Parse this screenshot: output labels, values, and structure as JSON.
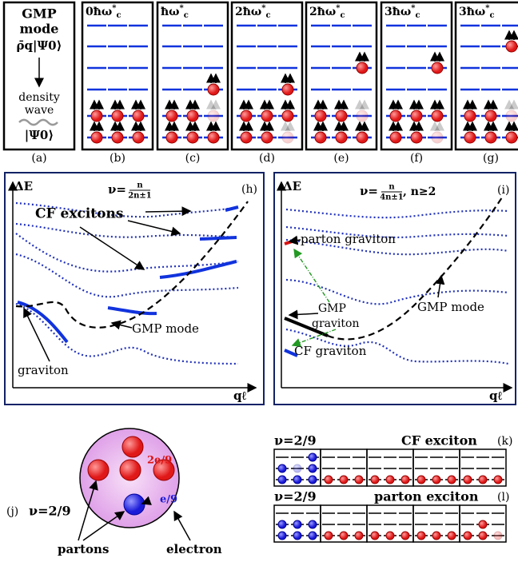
{
  "unit": {
    "base": "ħω",
    "sup": "*",
    "sub": "c"
  },
  "panel_a": {
    "lines": [
      "GMP",
      "mode",
      "ρ̄q|Ψ0⟩",
      "density",
      "wave",
      "|Ψ0⟩"
    ],
    "label": "(a)"
  },
  "level_panels": [
    {
      "multiple": "0",
      "label": "(b)"
    },
    {
      "multiple": "",
      "label": "(c)"
    },
    {
      "multiple": "2",
      "label": "(d)"
    },
    {
      "multiple": "2",
      "label": "(e)"
    },
    {
      "multiple": "3",
      "label": "(f)"
    },
    {
      "multiple": "3",
      "label": "(g)"
    }
  ],
  "panel_h": {
    "axis_y": "ΔE",
    "axis_x": "qℓ",
    "nu": "ν=",
    "frac_num": "n",
    "frac_den": "2n±1",
    "label": "(h)",
    "annotations": [
      "CF excitons",
      "GMP mode",
      "graviton"
    ]
  },
  "panel_i": {
    "axis_y": "ΔE",
    "axis_x": "qℓ",
    "nu": "ν=",
    "frac_num": "n",
    "frac_den": "4n±1",
    "condition": ", n≥2",
    "label": "(i)",
    "annotations": [
      "parton graviton",
      "GMP",
      "graviton",
      "CF graviton",
      "GMP mode"
    ]
  },
  "panel_j": {
    "label": "(j)",
    "nu": "ν=2/9",
    "charge_big": "2e/9",
    "charge_small": "e/9",
    "partons": "partons",
    "electron": "electron"
  },
  "panel_k": {
    "nu": "ν=2/9",
    "title": "CF exciton",
    "label": "(k)"
  },
  "panel_l": {
    "nu": "ν=2/9",
    "title": "parton exciton",
    "label": "(l)"
  }
}
